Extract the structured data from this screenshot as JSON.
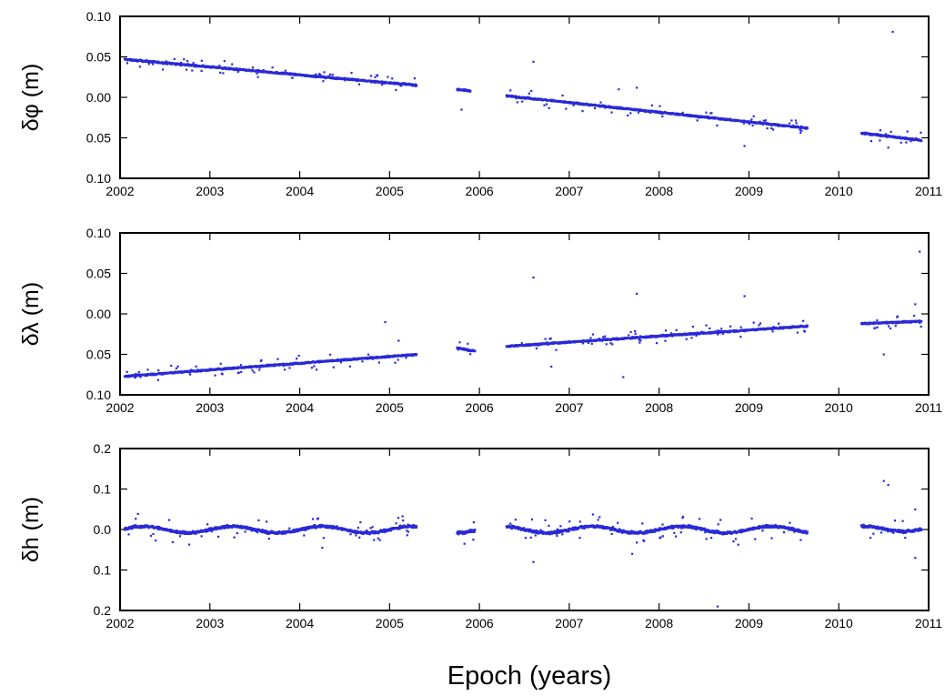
{
  "figure": {
    "xlabel": "Epoch (years)",
    "colors": {
      "data": "#2a2ad8",
      "axes": "#000000",
      "background": "#ffffff"
    }
  },
  "chart_data": [
    {
      "type": "scatter",
      "ylabel": "δφ (m)",
      "xlim": [
        2002,
        2011
      ],
      "ylim": [
        -0.1,
        0.1
      ],
      "x_ticks": [
        "2002",
        "2003",
        "2004",
        "2005",
        "2006",
        "2007",
        "2008",
        "2009",
        "2010",
        "2011"
      ],
      "y_ticks": [
        "0.10",
        "0.05",
        "0.00",
        "0.05",
        "0.10"
      ],
      "y_tick_values": [
        0.1,
        0.05,
        0.0,
        -0.05,
        -0.1
      ],
      "series": [
        {
          "segments": [
            {
              "x": [
                2002.05,
                2005.3
              ],
              "y": [
                0.047,
                0.015
              ]
            },
            {
              "x": [
                2005.75,
                2005.9
              ],
              "y": [
                0.01,
                0.008
              ]
            },
            {
              "x": [
                2006.3,
                2009.65
              ],
              "y": [
                0.002,
                -0.038
              ]
            },
            {
              "x": [
                2010.25,
                2010.92
              ],
              "y": [
                -0.044,
                -0.053
              ]
            }
          ],
          "outliers": [
            {
              "x": 2005.8,
              "y": -0.015
            },
            {
              "x": 2006.6,
              "y": 0.044
            },
            {
              "x": 2007.55,
              "y": 0.01
            },
            {
              "x": 2007.75,
              "y": 0.012
            },
            {
              "x": 2008.95,
              "y": -0.06
            },
            {
              "x": 2010.6,
              "y": 0.081
            },
            {
              "x": 2010.55,
              "y": -0.062
            }
          ]
        }
      ]
    },
    {
      "type": "scatter",
      "ylabel": "δλ (m)",
      "xlim": [
        2002,
        2011
      ],
      "ylim": [
        -0.1,
        0.1
      ],
      "x_ticks": [
        "2002",
        "2003",
        "2004",
        "2005",
        "2006",
        "2007",
        "2008",
        "2009",
        "2010",
        "2011"
      ],
      "y_ticks": [
        "0.10",
        "0.05",
        "0.00",
        "0.05",
        "0.10"
      ],
      "y_tick_values": [
        0.1,
        0.05,
        0.0,
        -0.05,
        -0.1
      ],
      "series": [
        {
          "segments": [
            {
              "x": [
                2002.05,
                2005.3
              ],
              "y": [
                -0.077,
                -0.05
              ]
            },
            {
              "x": [
                2005.75,
                2005.95
              ],
              "y": [
                -0.042,
                -0.046
              ]
            },
            {
              "x": [
                2006.3,
                2009.65
              ],
              "y": [
                -0.04,
                -0.015
              ]
            },
            {
              "x": [
                2010.25,
                2010.92
              ],
              "y": [
                -0.012,
                -0.009
              ]
            }
          ],
          "outliers": [
            {
              "x": 2004.95,
              "y": -0.01
            },
            {
              "x": 2005.1,
              "y": -0.033
            },
            {
              "x": 2006.6,
              "y": 0.045
            },
            {
              "x": 2006.8,
              "y": -0.065
            },
            {
              "x": 2007.6,
              "y": -0.078
            },
            {
              "x": 2007.75,
              "y": 0.025
            },
            {
              "x": 2008.95,
              "y": 0.022
            },
            {
              "x": 2010.5,
              "y": -0.05
            },
            {
              "x": 2010.9,
              "y": 0.077
            },
            {
              "x": 2010.85,
              "y": 0.012
            }
          ]
        }
      ]
    },
    {
      "type": "scatter",
      "ylabel": "δh (m)",
      "xlim": [
        2002,
        2011
      ],
      "ylim": [
        -0.2,
        0.2
      ],
      "x_ticks": [
        "2002",
        "2003",
        "2004",
        "2005",
        "2006",
        "2007",
        "2008",
        "2009",
        "2010",
        "2011"
      ],
      "y_ticks": [
        "0.2",
        "0.1",
        "0.0",
        "0.1",
        "0.2"
      ],
      "y_tick_values": [
        0.2,
        0.1,
        0.0,
        -0.1,
        -0.2
      ],
      "series": [
        {
          "segments": [
            {
              "x": [
                2002.05,
                2005.3
              ],
              "y": [
                0.0,
                0.0
              ]
            },
            {
              "x": [
                2005.75,
                2005.95
              ],
              "y": [
                0.0,
                0.0
              ]
            },
            {
              "x": [
                2006.3,
                2009.65
              ],
              "y": [
                0.0,
                0.0
              ]
            },
            {
              "x": [
                2010.25,
                2010.92
              ],
              "y": [
                0.0,
                0.005
              ]
            }
          ],
          "outliers": [
            {
              "x": 2004.25,
              "y": -0.045
            },
            {
              "x": 2006.6,
              "y": -0.08
            },
            {
              "x": 2007.7,
              "y": -0.06
            },
            {
              "x": 2008.65,
              "y": -0.19
            },
            {
              "x": 2010.5,
              "y": 0.12
            },
            {
              "x": 2010.55,
              "y": 0.11
            },
            {
              "x": 2010.85,
              "y": 0.05
            },
            {
              "x": 2010.85,
              "y": -0.07
            }
          ]
        }
      ]
    }
  ]
}
